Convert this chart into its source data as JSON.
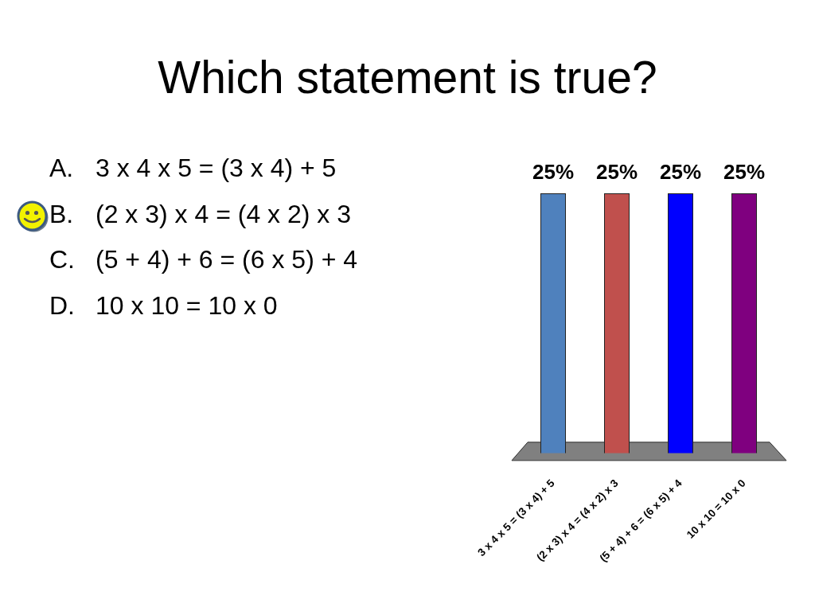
{
  "chart_data": {
    "type": "bar",
    "title": "Which statement is true?",
    "categories": [
      "3 x 4 x 5 = (3 x 4) + 5",
      "(2 x 3) x 4 = (4 x 2) x 3",
      "(5 + 4) + 6 = (6 x 5) + 4",
      "10 x 10 = 10 x 0"
    ],
    "values": [
      25,
      25,
      25,
      25
    ],
    "colors": [
      "#4f81bd",
      "#c0504d",
      "#0000ff",
      "#7f007f"
    ],
    "value_labels": [
      "25%",
      "25%",
      "25%",
      "25%"
    ],
    "tick_labels": "x",
    "annotations": [
      "A. 3 x 4 x 5 = (3 x 4) + 5",
      "B. (2 x 3) x 4 = (4 x 2) x 3",
      "C. (5 + 4) + 6 = (6 x 5) + 4",
      "D. 10 x 10 = 10 x 0"
    ]
  }
}
